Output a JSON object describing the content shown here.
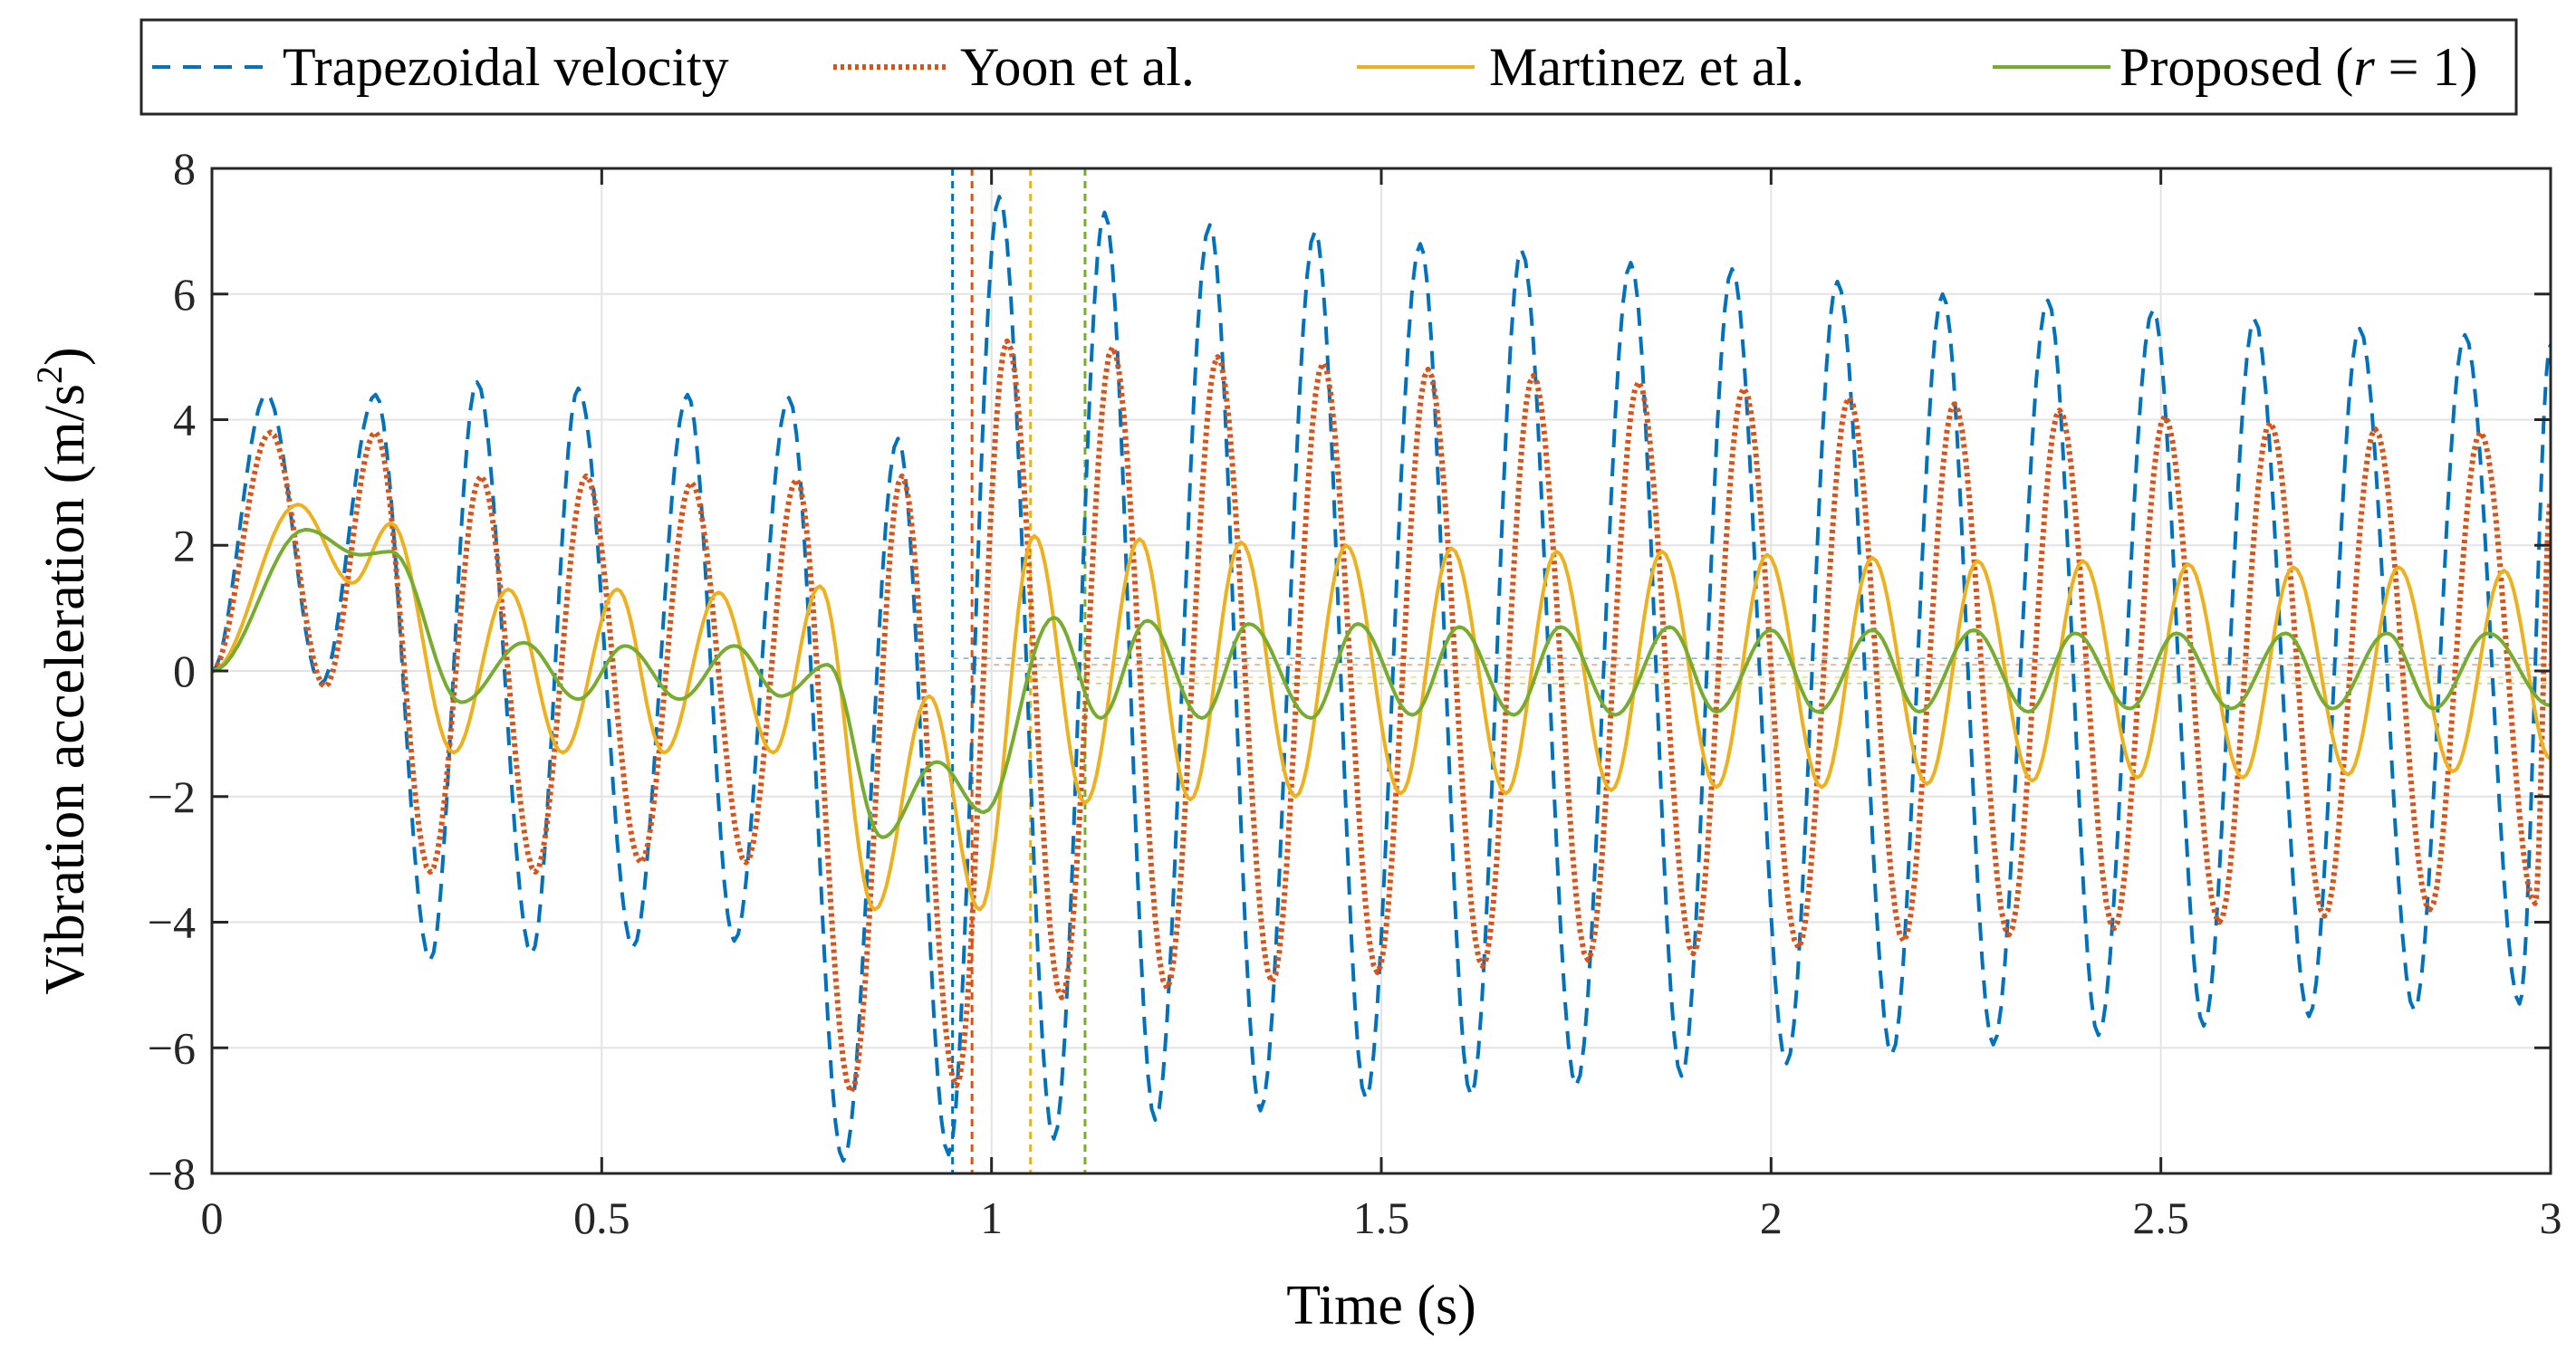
{
  "chart_data": {
    "type": "line",
    "title": "",
    "xlabel": "Time (s)",
    "ylabel_main": "Vibration acceleration (m/s",
    "ylabel_sup": "2",
    "ylabel_close": ")",
    "xlim": [
      0,
      3
    ],
    "ylim": [
      -8,
      8
    ],
    "grid": true,
    "legend_position": "top",
    "x_ticks": [
      0,
      0.5,
      1,
      1.5,
      2,
      2.5,
      3
    ],
    "x_tick_labels": [
      "0",
      "0.5",
      "1",
      "1.5",
      "2",
      "2.5",
      "3"
    ],
    "y_ticks": [
      -8,
      -6,
      -4,
      -2,
      0,
      2,
      4,
      6,
      8
    ],
    "y_tick_labels": [
      "−8",
      "−6",
      "−4",
      "−2",
      "0",
      "2",
      "4",
      "6",
      "8"
    ],
    "series": [
      {
        "name": "Trapezoidal velocity",
        "legend_label": "Trapezoidal velocity",
        "color": "#0072BD",
        "style": "dashed",
        "end_time": 0.95,
        "points": [
          [
            0,
            0
          ],
          [
            0.07,
            4.4
          ],
          [
            0.14,
            -0.2
          ],
          [
            0.21,
            4.4
          ],
          [
            0.28,
            -4.6
          ],
          [
            0.34,
            4.6
          ],
          [
            0.41,
            -4.5
          ],
          [
            0.47,
            4.5
          ],
          [
            0.54,
            -4.4
          ],
          [
            0.61,
            4.4
          ],
          [
            0.67,
            -4.3
          ],
          [
            0.74,
            4.35
          ],
          [
            0.81,
            -7.8
          ],
          [
            0.88,
            3.7
          ],
          [
            0.945,
            -7.7
          ],
          [
            1.01,
            7.55
          ],
          [
            1.08,
            -7.45
          ],
          [
            1.145,
            7.3
          ],
          [
            1.21,
            -7.15
          ],
          [
            1.28,
            7.1
          ],
          [
            1.345,
            -7.0
          ],
          [
            1.415,
            7.0
          ],
          [
            1.48,
            -6.8
          ],
          [
            1.55,
            6.8
          ],
          [
            1.615,
            -6.75
          ],
          [
            1.68,
            6.7
          ],
          [
            1.75,
            -6.6
          ],
          [
            1.82,
            6.5
          ],
          [
            1.885,
            -6.45
          ],
          [
            1.95,
            6.4
          ],
          [
            2.02,
            -6.25
          ],
          [
            2.085,
            6.2
          ],
          [
            2.155,
            -6.1
          ],
          [
            2.22,
            6.0
          ],
          [
            2.285,
            -5.95
          ],
          [
            2.355,
            5.9
          ],
          [
            2.42,
            -5.8
          ],
          [
            2.49,
            5.75
          ],
          [
            2.555,
            -5.65
          ],
          [
            2.62,
            5.6
          ],
          [
            2.69,
            -5.5
          ],
          [
            2.755,
            5.45
          ],
          [
            2.825,
            -5.4
          ],
          [
            2.89,
            5.35
          ],
          [
            2.96,
            -5.3
          ],
          [
            3.0,
            5.2
          ]
        ]
      },
      {
        "name": "Yoon et al.",
        "legend_label": "Yoon et al.",
        "color": "#D95319",
        "style": "dotted",
        "end_time": 0.975,
        "points": [
          [
            0,
            0
          ],
          [
            0.075,
            3.8
          ],
          [
            0.145,
            -0.25
          ],
          [
            0.21,
            3.8
          ],
          [
            0.28,
            -3.2
          ],
          [
            0.345,
            3.1
          ],
          [
            0.415,
            -3.2
          ],
          [
            0.48,
            3.1
          ],
          [
            0.55,
            -3.05
          ],
          [
            0.615,
            3.0
          ],
          [
            0.685,
            -3.05
          ],
          [
            0.75,
            3.05
          ],
          [
            0.82,
            -6.7
          ],
          [
            0.885,
            3.1
          ],
          [
            0.955,
            -6.6
          ],
          [
            1.02,
            5.25
          ],
          [
            1.09,
            -5.2
          ],
          [
            1.155,
            5.15
          ],
          [
            1.225,
            -5.05
          ],
          [
            1.29,
            5.0
          ],
          [
            1.36,
            -4.95
          ],
          [
            1.425,
            4.9
          ],
          [
            1.495,
            -4.8
          ],
          [
            1.56,
            4.8
          ],
          [
            1.63,
            -4.7
          ],
          [
            1.695,
            4.7
          ],
          [
            1.765,
            -4.6
          ],
          [
            1.83,
            4.6
          ],
          [
            1.9,
            -4.5
          ],
          [
            1.965,
            4.5
          ],
          [
            2.035,
            -4.4
          ],
          [
            2.1,
            4.35
          ],
          [
            2.17,
            -4.3
          ],
          [
            2.235,
            4.25
          ],
          [
            2.305,
            -4.2
          ],
          [
            2.37,
            4.15
          ],
          [
            2.44,
            -4.1
          ],
          [
            2.505,
            4.05
          ],
          [
            2.575,
            -4.0
          ],
          [
            2.64,
            3.95
          ],
          [
            2.71,
            -3.9
          ],
          [
            2.775,
            3.85
          ],
          [
            2.845,
            -3.8
          ],
          [
            2.91,
            3.8
          ],
          [
            2.98,
            -3.7
          ],
          [
            3.0,
            2.7
          ]
        ]
      },
      {
        "name": "Martinez et al.",
        "legend_label": "Martinez et al.",
        "color": "#EDB120",
        "style": "solid",
        "end_time": 1.05,
        "points": [
          [
            0,
            0
          ],
          [
            0.11,
            2.65
          ],
          [
            0.18,
            1.4
          ],
          [
            0.23,
            2.35
          ],
          [
            0.31,
            -1.3
          ],
          [
            0.38,
            1.3
          ],
          [
            0.45,
            -1.3
          ],
          [
            0.52,
            1.3
          ],
          [
            0.58,
            -1.3
          ],
          [
            0.65,
            1.25
          ],
          [
            0.72,
            -1.3
          ],
          [
            0.78,
            1.35
          ],
          [
            0.85,
            -3.8
          ],
          [
            0.92,
            -0.4
          ],
          [
            0.985,
            -3.8
          ],
          [
            1.055,
            2.15
          ],
          [
            1.12,
            -2.1
          ],
          [
            1.19,
            2.1
          ],
          [
            1.255,
            -2.05
          ],
          [
            1.32,
            2.05
          ],
          [
            1.39,
            -2.0
          ],
          [
            1.455,
            2.0
          ],
          [
            1.525,
            -1.95
          ],
          [
            1.59,
            1.95
          ],
          [
            1.66,
            -1.95
          ],
          [
            1.725,
            1.9
          ],
          [
            1.795,
            -1.9
          ],
          [
            1.86,
            1.9
          ],
          [
            1.93,
            -1.85
          ],
          [
            1.995,
            1.85
          ],
          [
            2.065,
            -1.85
          ],
          [
            2.13,
            1.8
          ],
          [
            2.2,
            -1.8
          ],
          [
            2.265,
            1.75
          ],
          [
            2.335,
            -1.75
          ],
          [
            2.4,
            1.75
          ],
          [
            2.47,
            -1.7
          ],
          [
            2.535,
            1.7
          ],
          [
            2.605,
            -1.7
          ],
          [
            2.67,
            1.65
          ],
          [
            2.74,
            -1.65
          ],
          [
            2.805,
            1.65
          ],
          [
            2.875,
            -1.6
          ],
          [
            2.94,
            1.6
          ],
          [
            3.0,
            -1.4
          ]
        ]
      },
      {
        "name": "Proposed (r = 1)",
        "legend_label_pre": "Proposed (",
        "legend_label_var": "r",
        "legend_label_post": " = 1)",
        "color": "#77AC30",
        "style": "solid",
        "end_time": 1.12,
        "points": [
          [
            0,
            0
          ],
          [
            0.12,
            2.25
          ],
          [
            0.19,
            1.85
          ],
          [
            0.23,
            1.9
          ],
          [
            0.32,
            -0.5
          ],
          [
            0.4,
            0.45
          ],
          [
            0.47,
            -0.45
          ],
          [
            0.53,
            0.4
          ],
          [
            0.6,
            -0.45
          ],
          [
            0.67,
            0.4
          ],
          [
            0.73,
            -0.4
          ],
          [
            0.79,
            0.1
          ],
          [
            0.86,
            -2.65
          ],
          [
            0.93,
            -1.45
          ],
          [
            0.99,
            -2.25
          ],
          [
            1.08,
            0.85
          ],
          [
            1.14,
            -0.75
          ],
          [
            1.2,
            0.8
          ],
          [
            1.27,
            -0.75
          ],
          [
            1.33,
            0.75
          ],
          [
            1.41,
            -0.75
          ],
          [
            1.47,
            0.75
          ],
          [
            1.54,
            -0.7
          ],
          [
            1.6,
            0.7
          ],
          [
            1.67,
            -0.7
          ],
          [
            1.73,
            0.7
          ],
          [
            1.8,
            -0.7
          ],
          [
            1.87,
            0.7
          ],
          [
            1.93,
            -0.65
          ],
          [
            2.0,
            0.65
          ],
          [
            2.06,
            -0.65
          ],
          [
            2.13,
            0.65
          ],
          [
            2.19,
            -0.65
          ],
          [
            2.26,
            0.65
          ],
          [
            2.33,
            -0.65
          ],
          [
            2.39,
            0.6
          ],
          [
            2.46,
            -0.6
          ],
          [
            2.52,
            0.6
          ],
          [
            2.59,
            -0.6
          ],
          [
            2.66,
            0.6
          ],
          [
            2.72,
            -0.6
          ],
          [
            2.79,
            0.6
          ],
          [
            2.85,
            -0.6
          ],
          [
            2.92,
            0.6
          ],
          [
            3.0,
            -0.55
          ]
        ]
      }
    ]
  }
}
